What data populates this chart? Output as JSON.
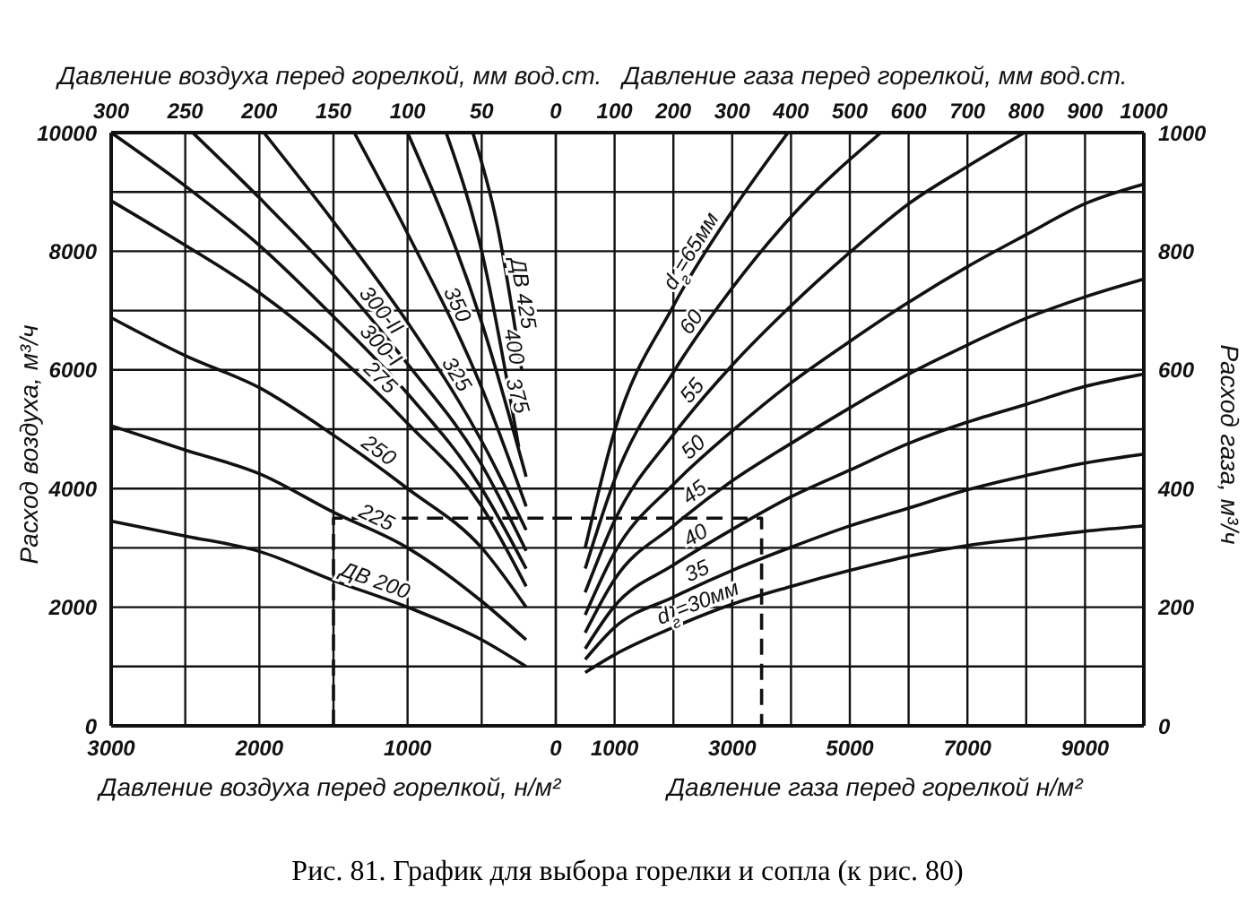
{
  "chart_data": [
    {
      "type": "line",
      "xlabel": "Давление воздуха перед горелкой, н/м²",
      "x2label": "Давление воздуха перед горелкой, мм вод.ст.",
      "ylabel": "Расход воздуха, м³/ч",
      "annotations": [
        "Рис. 81. График для выбора горелки и сопла (к рис. 80)"
      ],
      "xlim": [
        3000,
        0
      ],
      "xticks": [
        3000,
        {
          "value": 2500,
          "label": null
        },
        2000,
        {
          "value": 1500,
          "label": null
        },
        1000,
        {
          "value": 500,
          "label": null
        },
        0
      ],
      "x2lim": [
        300,
        0
      ],
      "x2ticks": [
        300,
        250,
        200,
        150,
        100,
        50,
        0
      ],
      "ylim": [
        0,
        10000
      ],
      "yticks": [
        0,
        {
          "value": 1000,
          "label": null
        },
        2000,
        {
          "value": 3000,
          "label": null
        },
        4000,
        {
          "value": 5000,
          "label": null
        },
        6000,
        {
          "value": 7000,
          "label": null
        },
        8000,
        {
          "value": 9000,
          "label": null
        },
        10000
      ],
      "grid": true,
      "marker": "none",
      "series": [
        {
          "name": "ДВ 200",
          "color": "#111111",
          "x": [
            3000,
            2500,
            2000,
            1500,
            1000,
            500,
            200
          ],
          "values": [
            3450,
            3200,
            2940,
            2450,
            2000,
            1450,
            1000
          ]
        },
        {
          "name": "225",
          "color": "#111111",
          "x": [
            3000,
            2500,
            2000,
            1500,
            1000,
            500,
            200
          ],
          "values": [
            5060,
            4650,
            4250,
            3600,
            3000,
            2100,
            1450
          ]
        },
        {
          "name": "250",
          "color": "#111111",
          "x": [
            3000,
            2500,
            2000,
            1500,
            1000,
            500,
            200
          ],
          "values": [
            6880,
            6240,
            5700,
            4900,
            4000,
            3000,
            2000
          ]
        },
        {
          "name": "275",
          "color": "#111111",
          "x": [
            3000,
            2500,
            2000,
            1500,
            1000,
            500,
            200
          ],
          "values": [
            8850,
            8100,
            7300,
            6300,
            5100,
            3700,
            2350
          ]
        },
        {
          "name": "300-I",
          "color": "#111111",
          "x": [
            3000,
            2500,
            2000,
            1500,
            1000,
            500,
            200
          ],
          "values": [
            10000,
            9100,
            8100,
            6900,
            5600,
            4000,
            2650
          ]
        },
        {
          "name": "300-II",
          "color": "#111111",
          "x": [
            2450,
            2000,
            1500,
            1000,
            500,
            200
          ],
          "values": [
            10000,
            8900,
            7600,
            6100,
            4400,
            2950
          ]
        },
        {
          "name": "325",
          "color": "#111111",
          "x": [
            1970,
            1500,
            1000,
            500,
            200
          ],
          "values": [
            10000,
            8500,
            6800,
            4800,
            3300
          ]
        },
        {
          "name": "350",
          "color": "#111111",
          "x": [
            1360,
            1000,
            500,
            200
          ],
          "values": [
            10000,
            8300,
            5700,
            3700
          ]
        },
        {
          "name": "375",
          "color": "#111111",
          "x": [
            1000,
            500,
            200
          ],
          "values": [
            10000,
            6800,
            4200
          ]
        },
        {
          "name": "400",
          "color": "#111111",
          "x": [
            740,
            500,
            250
          ],
          "values": [
            10000,
            8000,
            4700
          ]
        },
        {
          "name": "ДВ 425",
          "color": "#111111",
          "x": [
            560,
            400,
            230
          ],
          "values": [
            10000,
            8500,
            6000
          ]
        },
        {
          "type": "line",
          "line_style": "dashed",
          "color": "#111111",
          "x": [
            1500,
            1500,
            0
          ],
          "values": [
            0,
            3500,
            3500
          ]
        }
      ]
    },
    {
      "type": "line",
      "xlabel": "Давление газа перед горелкой н/м²",
      "x2label": "Давление газа перед горелкой, мм вод.ст.",
      "y2label": "Расход газа, м³/ч",
      "xlim": [
        0,
        10000
      ],
      "xticks": [
        {
          "value": 0,
          "label": null
        },
        1000,
        {
          "value": 2000,
          "label": null
        },
        3000,
        {
          "value": 4000,
          "label": null
        },
        5000,
        {
          "value": 6000,
          "label": null
        },
        7000,
        {
          "value": 8000,
          "label": null
        },
        9000,
        {
          "value": 10000,
          "label": null
        }
      ],
      "x2lim": [
        0,
        1000
      ],
      "x2ticks": [
        100,
        200,
        300,
        400,
        500,
        600,
        700,
        800,
        900,
        1000
      ],
      "y2lim": [
        0,
        1000
      ],
      "y2ticks": [
        0,
        {
          "value": 100,
          "label": null
        },
        200,
        {
          "value": 300,
          "label": null
        },
        400,
        {
          "value": 500,
          "label": null
        },
        600,
        {
          "value": 700,
          "label": null
        },
        800,
        {
          "value": 900,
          "label": null
        },
        1000
      ],
      "grid": true,
      "marker": "none",
      "series": [
        {
          "name": "d$_{г}$=30мм",
          "axis": "y2",
          "color": "#111111",
          "x": [
            500,
            1000,
            2000,
            3000,
            4000,
            5000,
            6000,
            7000,
            8000,
            9000,
            10000
          ],
          "values": [
            90,
            120,
            166,
            205,
            235,
            262,
            286,
            304,
            316,
            328,
            337
          ]
        },
        {
          "name": "35",
          "axis": "y2",
          "color": "#111111",
          "x": [
            500,
            1000,
            2000,
            3000,
            4000,
            5000,
            6000,
            7000,
            8000,
            9000,
            10000
          ],
          "values": [
            112,
            166,
            217,
            262,
            301,
            337,
            367,
            398,
            422,
            443,
            458
          ]
        },
        {
          "name": "40",
          "axis": "y2",
          "color": "#111111",
          "x": [
            500,
            1000,
            2000,
            3000,
            4000,
            5000,
            6000,
            7000,
            8000,
            9000,
            10000
          ],
          "values": [
            130,
            202,
            271,
            331,
            386,
            431,
            476,
            512,
            542,
            572,
            593
          ]
        },
        {
          "name": "45",
          "axis": "y2",
          "color": "#111111",
          "x": [
            500,
            1000,
            2000,
            3000,
            4000,
            5000,
            6000,
            7000,
            8000,
            9000,
            10000
          ],
          "values": [
            157,
            247,
            337,
            413,
            476,
            536,
            593,
            642,
            687,
            723,
            753
          ]
        },
        {
          "name": "50",
          "axis": "y2",
          "color": "#111111",
          "x": [
            500,
            1000,
            2000,
            3000,
            4000,
            5000,
            6000,
            7000,
            8000,
            9000,
            10000
          ],
          "values": [
            187,
            292,
            407,
            497,
            578,
            648,
            714,
            774,
            828,
            880,
            913
          ]
        },
        {
          "name": "55",
          "axis": "y2",
          "color": "#111111",
          "x": [
            500,
            1000,
            2000,
            3000,
            4000,
            5000,
            6000,
            7000,
            7970
          ],
          "values": [
            225,
            346,
            491,
            608,
            708,
            798,
            880,
            943,
            1000
          ]
        },
        {
          "name": "60",
          "axis": "y2",
          "color": "#111111",
          "x": [
            500,
            1000,
            2000,
            3000,
            4000,
            5530
          ],
          "values": [
            265,
            415,
            596,
            738,
            858,
            1000
          ]
        },
        {
          "name": "d$_{г}$=65мм",
          "axis": "y2",
          "color": "#111111",
          "x": [
            500,
            1000,
            2000,
            3000,
            3950
          ],
          "values": [
            300,
            497,
            708,
            868,
            1000
          ]
        },
        {
          "type": "line",
          "axis": "y2",
          "line_style": "dashed",
          "color": "#111111",
          "x": [
            0,
            3500,
            3500
          ],
          "values": [
            350,
            350,
            0
          ]
        }
      ]
    }
  ]
}
